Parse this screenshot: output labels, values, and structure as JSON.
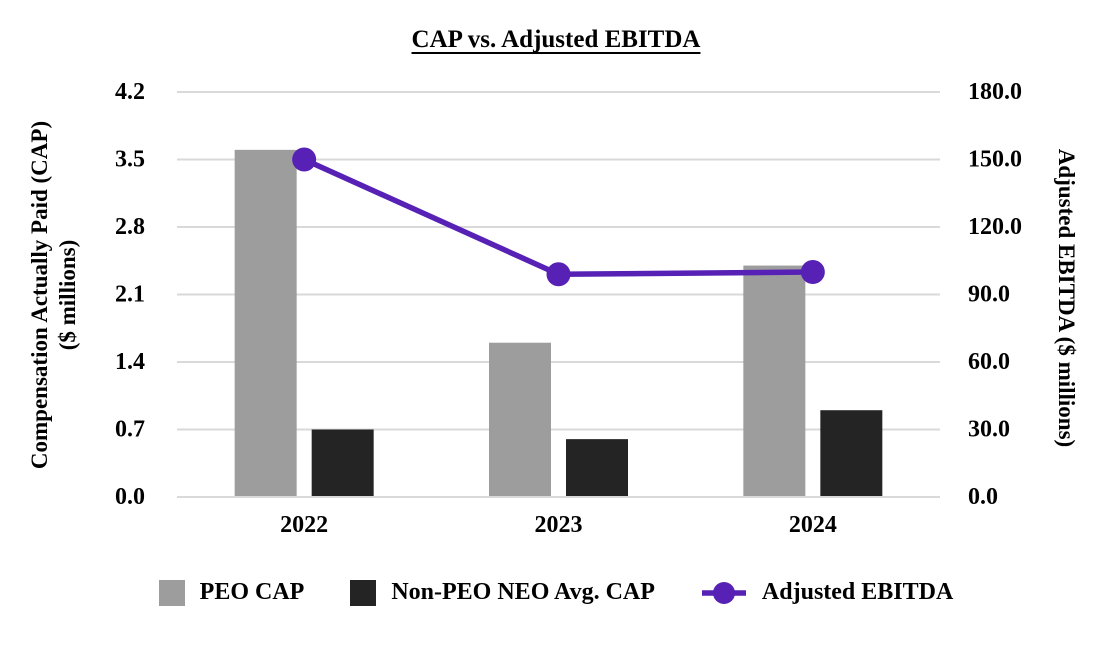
{
  "title": "CAP vs. Adjusted EBITDA",
  "axes": {
    "left_title": "Compensation Actually Paid (CAP)\n($ millions)",
    "right_title": "Adjusted EBITDA ($ millions)"
  },
  "colors": {
    "peo_bar": "#9d9d9d",
    "non_peo_bar": "#242424",
    "ebitda_line": "#5621b4",
    "gridline": "#d9d9d9",
    "text": "#000000",
    "background": "#ffffff"
  },
  "chart_data": {
    "type": "bar+line combo (dual axis)",
    "title": "CAP vs. Adjusted EBITDA",
    "categories": [
      "2022",
      "2023",
      "2024"
    ],
    "series": [
      {
        "name": "PEO CAP",
        "type": "bar",
        "axis": "left",
        "color": "#9d9d9d",
        "values": [
          3.6,
          1.6,
          2.4
        ]
      },
      {
        "name": "Non-PEO NEO Avg. CAP",
        "type": "bar",
        "axis": "left",
        "color": "#242424",
        "values": [
          0.7,
          0.6,
          0.9
        ]
      },
      {
        "name": "Adjusted EBITDA",
        "type": "line",
        "axis": "right",
        "color": "#5621b4",
        "values": [
          150.0,
          99.0,
          100.0
        ]
      }
    ],
    "ylabel_left": "Compensation Actually Paid (CAP) ($ millions)",
    "ylabel_right": "Adjusted EBITDA ($ millions)",
    "ylim_left": [
      0,
      4.2
    ],
    "ylim_right": [
      0,
      180
    ],
    "left_ticks": [
      "4.2",
      "3.5",
      "2.8",
      "2.1",
      "1.4",
      "0.7",
      "0.0"
    ],
    "right_ticks": [
      "180.0",
      "150.0",
      "120.0",
      "90.0",
      "60.0",
      "30.0",
      "0.0"
    ],
    "grid": "horizontal gridlines on",
    "legend_position": "bottom"
  }
}
